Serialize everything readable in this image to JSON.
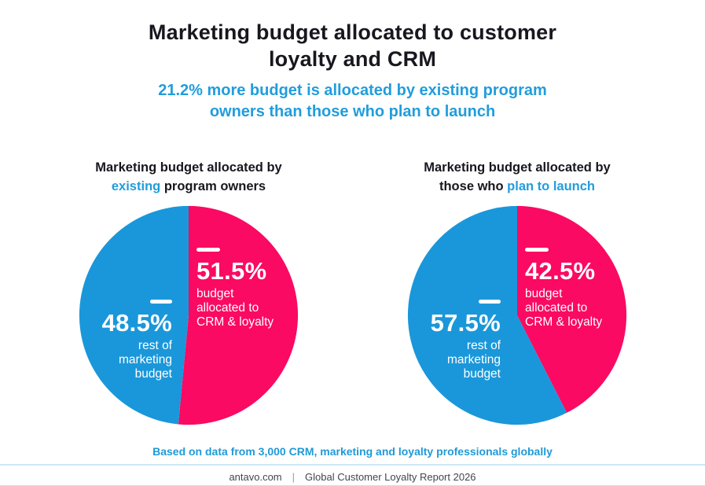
{
  "page": {
    "title_line1": "Marketing budget allocated to customer",
    "title_line2": "loyalty and CRM",
    "subtitle_line1": "21.2% more budget is allocated by existing program",
    "subtitle_line2": "owners than those who plan to launch",
    "footnote": "Based on data from 3,000 CRM, marketing and loyalty professionals globally",
    "footer_site": "antavo.com",
    "footer_separator": "|",
    "footer_report": "Global Customer Loyalty Report 2026"
  },
  "colors": {
    "pink": "#FA0A62",
    "blue": "#1A97DA",
    "accent_text_blue": "#219DDC",
    "title_dark": "#17171F",
    "footer_gray": "#45454D",
    "label_white": "#FFFFFF"
  },
  "chart_data": [
    {
      "type": "pie",
      "title_line1": "Marketing budget allocated by",
      "title_line2_parts": [
        {
          "text": "existing",
          "color": "#219DDC"
        },
        {
          "text": "program owners",
          "color": "#17171F"
        }
      ],
      "legend_position": "on-slice",
      "slices": [
        {
          "label": "budget allocated to CRM & loyalty",
          "value": 51.5,
          "pct_label": "51.5%",
          "color": "#FA0A62",
          "desc_lines": [
            "budget",
            "allocated to",
            "CRM & loyalty"
          ]
        },
        {
          "label": "rest of marketing budget",
          "value": 48.5,
          "pct_label": "48.5%",
          "color": "#1A97DA",
          "desc_lines": [
            "rest of",
            "marketing",
            "budget"
          ]
        }
      ],
      "start_angle_deg_from_top": 0,
      "direction": "clockwise"
    },
    {
      "type": "pie",
      "title_line1": "Marketing budget allocated by",
      "title_line2_parts": [
        {
          "text": "those who",
          "color": "#17171F"
        },
        {
          "text": "plan to launch",
          "color": "#219DDC"
        }
      ],
      "legend_position": "on-slice",
      "slices": [
        {
          "label": "budget allocated to CRM & loyalty",
          "value": 42.5,
          "pct_label": "42.5%",
          "color": "#FA0A62",
          "desc_lines": [
            "budget",
            "allocated to",
            "CRM & loyalty"
          ]
        },
        {
          "label": "rest of marketing budget",
          "value": 57.5,
          "pct_label": "57.5%",
          "color": "#1A97DA",
          "desc_lines": [
            "rest of",
            "marketing",
            "budget"
          ]
        }
      ],
      "start_angle_deg_from_top": 0,
      "direction": "clockwise"
    }
  ]
}
